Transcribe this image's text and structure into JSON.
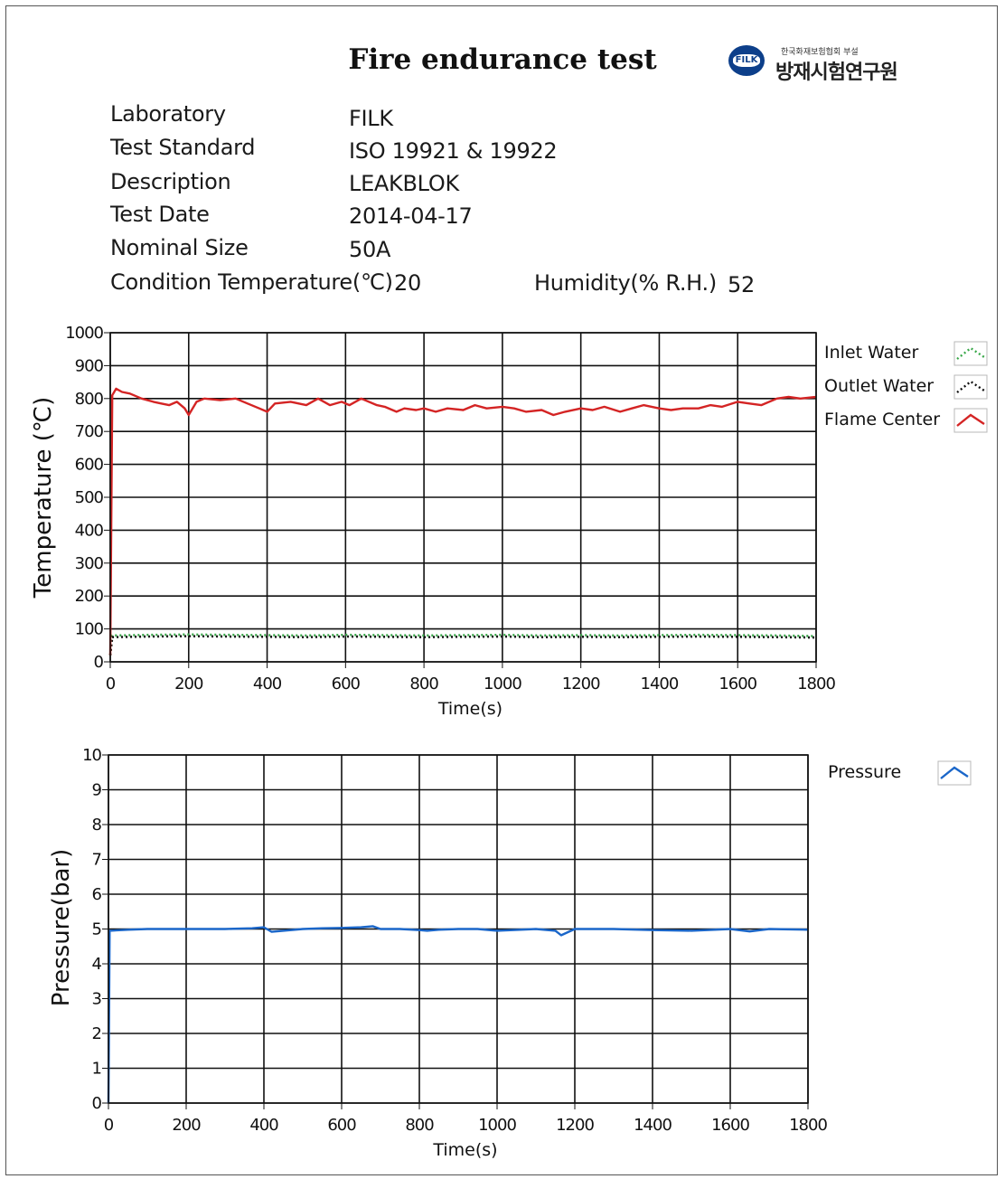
{
  "report": {
    "title": "Fire endurance test",
    "logo": {
      "badge_text": "FILK",
      "subtitle": "한국화재보험협회 부설",
      "name": "방재시험연구원"
    },
    "fields": [
      {
        "label": "Laboratory",
        "value": "FILK"
      },
      {
        "label": "Test Standard",
        "value": "ISO 19921 & 19922"
      },
      {
        "label": "Description",
        "value": "LEAKBLOK"
      },
      {
        "label": "Test Date",
        "value": "2014-04-17"
      },
      {
        "label": "Nominal Size",
        "value": "50A"
      }
    ],
    "condition": {
      "temp_label": "Condition Temperature(℃)",
      "temp_value": "20",
      "humidity_label": "Humidity(% R.H.)",
      "humidity_value": "52"
    }
  },
  "chart_data": [
    {
      "type": "line",
      "id": "temperature",
      "xlabel": "Time(s)",
      "ylabel": "Temperature (℃)",
      "xlim": [
        0,
        1800
      ],
      "ylim": [
        0,
        1000
      ],
      "xticks": [
        0,
        200,
        400,
        600,
        800,
        1000,
        1200,
        1400,
        1600,
        1800
      ],
      "yticks": [
        0,
        100,
        200,
        300,
        400,
        500,
        600,
        700,
        800,
        900,
        1000
      ],
      "grid": true,
      "legend_position": "right",
      "series": [
        {
          "name": "Inlet Water",
          "color": "#3aa84a",
          "style": "dotted",
          "x": [
            0,
            5,
            100,
            200,
            300,
            400,
            500,
            600,
            700,
            800,
            900,
            1000,
            1100,
            1200,
            1300,
            1400,
            1500,
            1600,
            1700,
            1800
          ],
          "y": [
            20,
            80,
            82,
            83,
            82,
            81,
            80,
            82,
            81,
            80,
            81,
            82,
            80,
            81,
            80,
            81,
            82,
            81,
            80,
            78
          ]
        },
        {
          "name": "Outlet Water",
          "color": "#111111",
          "style": "dotted",
          "x": [
            0,
            5,
            100,
            200,
            300,
            400,
            500,
            600,
            700,
            800,
            900,
            1000,
            1100,
            1200,
            1300,
            1400,
            1500,
            1600,
            1700,
            1800
          ],
          "y": [
            20,
            75,
            77,
            78,
            77,
            76,
            75,
            77,
            76,
            75,
            76,
            77,
            75,
            76,
            75,
            76,
            77,
            76,
            75,
            74
          ]
        },
        {
          "name": "Flame Center",
          "color": "#d42424",
          "style": "solid",
          "x": [
            0,
            5,
            15,
            30,
            50,
            80,
            110,
            130,
            150,
            170,
            190,
            200,
            220,
            240,
            280,
            320,
            350,
            380,
            400,
            420,
            460,
            500,
            530,
            560,
            590,
            610,
            640,
            680,
            700,
            730,
            750,
            780,
            800,
            830,
            860,
            900,
            930,
            960,
            1000,
            1030,
            1060,
            1100,
            1130,
            1160,
            1200,
            1230,
            1260,
            1300,
            1330,
            1360,
            1400,
            1430,
            1460,
            1500,
            1530,
            1560,
            1600,
            1630,
            1660,
            1700,
            1730,
            1760,
            1800
          ],
          "y": [
            20,
            810,
            830,
            820,
            815,
            800,
            790,
            785,
            780,
            790,
            770,
            750,
            790,
            800,
            795,
            800,
            785,
            770,
            760,
            785,
            790,
            780,
            800,
            780,
            790,
            780,
            800,
            780,
            775,
            760,
            770,
            765,
            770,
            760,
            770,
            765,
            780,
            770,
            775,
            770,
            760,
            765,
            750,
            760,
            770,
            765,
            775,
            760,
            770,
            780,
            770,
            765,
            770,
            770,
            780,
            775,
            790,
            785,
            780,
            800,
            805,
            800,
            805
          ]
        }
      ]
    },
    {
      "type": "line",
      "id": "pressure",
      "xlabel": "Time(s)",
      "ylabel": "Pressure(bar)",
      "xlim": [
        0,
        1800
      ],
      "ylim": [
        0,
        10
      ],
      "xticks": [
        0,
        200,
        400,
        600,
        800,
        1000,
        1200,
        1400,
        1600,
        1800
      ],
      "yticks": [
        0,
        1,
        2,
        3,
        4,
        5,
        6,
        7,
        8,
        9,
        10
      ],
      "grid": true,
      "legend_position": "right",
      "series": [
        {
          "name": "Pressure",
          "color": "#1a66c9",
          "style": "solid",
          "x": [
            0,
            3,
            50,
            100,
            200,
            300,
            370,
            400,
            420,
            450,
            500,
            550,
            600,
            650,
            680,
            700,
            750,
            800,
            820,
            850,
            900,
            950,
            1000,
            1100,
            1150,
            1165,
            1200,
            1300,
            1400,
            1500,
            1600,
            1650,
            1700,
            1800
          ],
          "y": [
            0,
            4.95,
            4.98,
            5.0,
            5.0,
            5.0,
            5.02,
            5.05,
            4.92,
            4.95,
            5.0,
            5.02,
            5.03,
            5.05,
            5.08,
            5.0,
            5.0,
            4.97,
            4.95,
            4.98,
            5.0,
            5.0,
            4.95,
            5.0,
            4.95,
            4.82,
            5.0,
            5.0,
            4.97,
            4.95,
            5.0,
            4.93,
            5.0,
            4.98
          ]
        }
      ]
    }
  ]
}
